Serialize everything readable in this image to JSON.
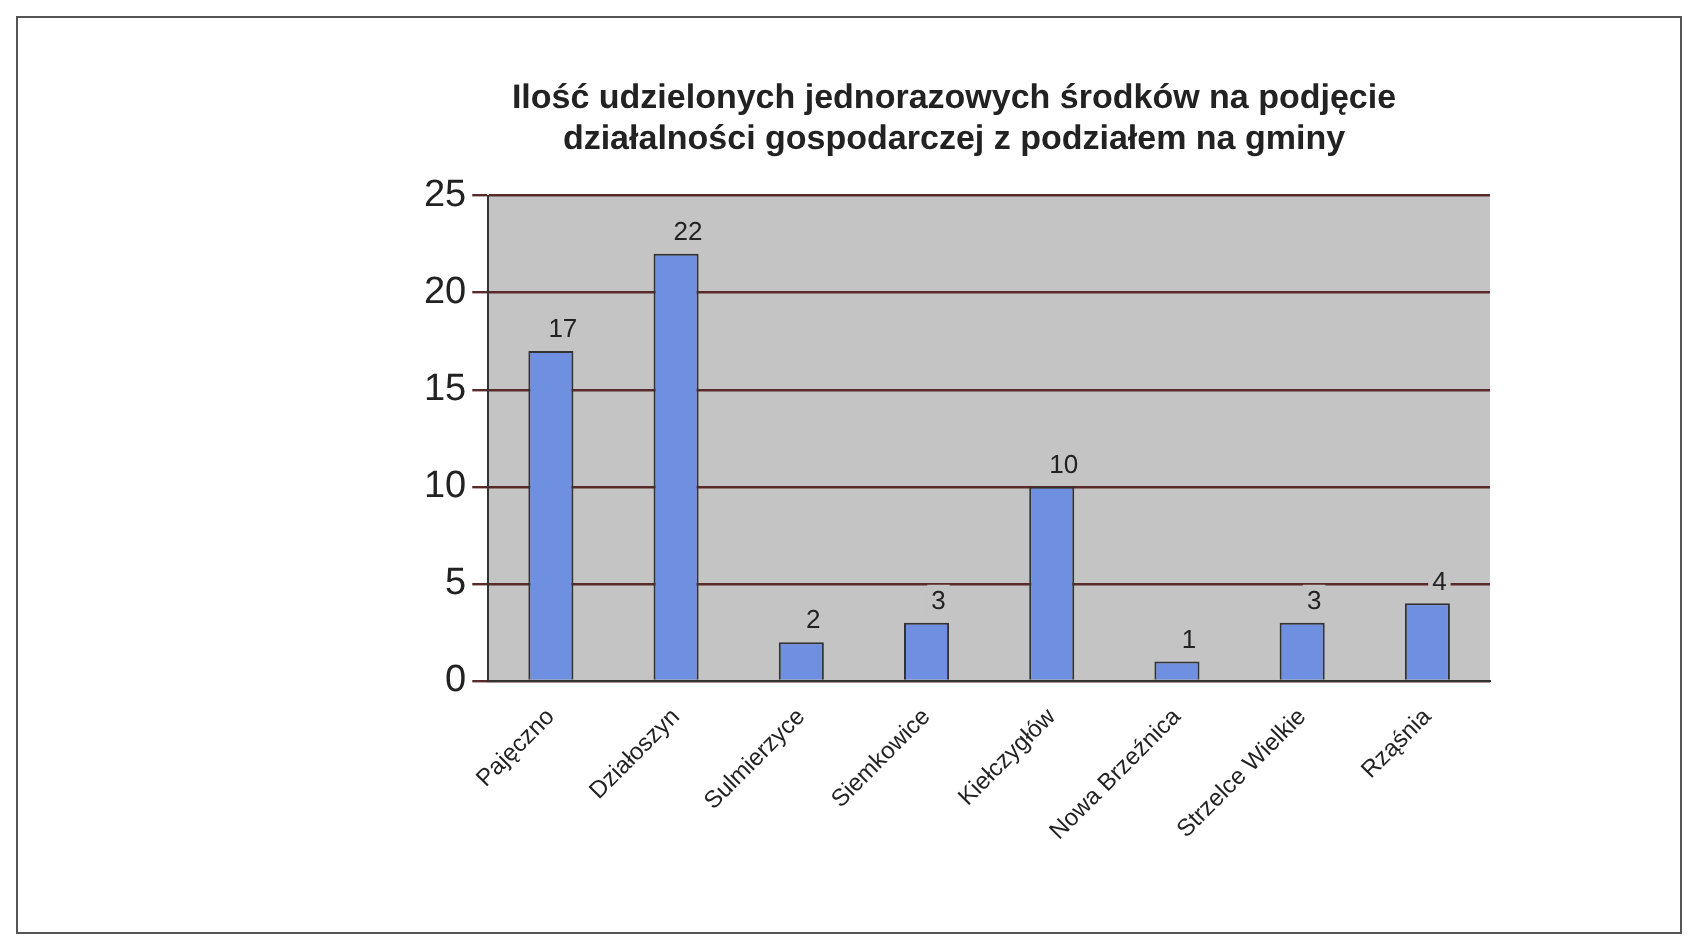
{
  "chart_data": {
    "type": "bar",
    "title": "Ilość udzielonych jednorazowych środków na podjęcie działalności gospodarczej z podziałem na gminy",
    "categories": [
      "Pajęczno",
      "Działoszyn",
      "Sulmierzyce",
      "Siemkowice",
      "Kiełczygłów",
      "Nowa Brzeźnica",
      "Strzelce Wielkie",
      "Rząśnia"
    ],
    "values": [
      17,
      22,
      2,
      3,
      10,
      1,
      3,
      4
    ],
    "color": "#6f8fe0",
    "ylim": [
      0,
      25
    ],
    "yticks": [
      0,
      5,
      10,
      15,
      20,
      25
    ],
    "grid": "y",
    "data_labels": true
  }
}
